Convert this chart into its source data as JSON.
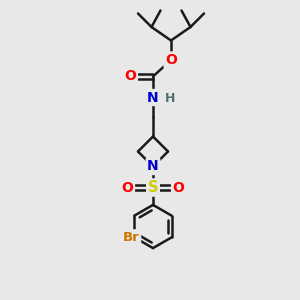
{
  "bg_color": "#e8e8e8",
  "bond_color": "#1a1a1a",
  "bond_width": 1.8,
  "colors": {
    "O": "#ff0000",
    "N": "#0000cc",
    "S": "#cccc00",
    "Br": "#cc7700",
    "H": "#507070",
    "C": "#1a1a1a"
  },
  "figsize": [
    3.0,
    3.0
  ],
  "dpi": 100,
  "xlim": [
    0,
    10
  ],
  "ylim": [
    0,
    10
  ]
}
